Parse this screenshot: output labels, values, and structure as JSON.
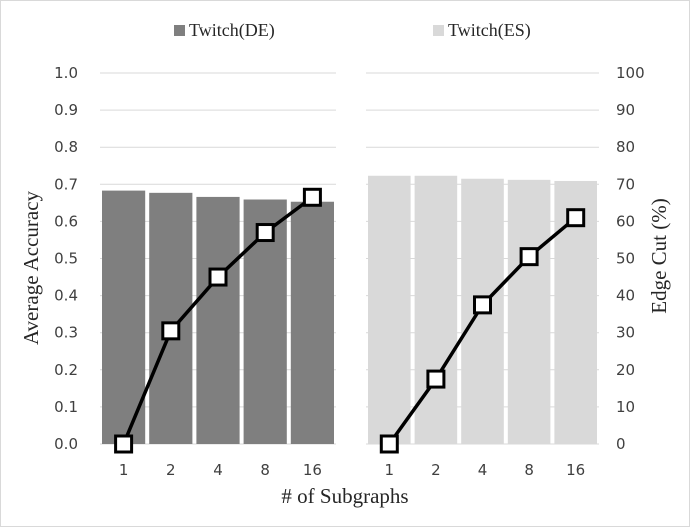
{
  "chart_data": {
    "type": "bar",
    "categories": [
      "1",
      "2",
      "4",
      "8",
      "16"
    ],
    "xlabel": "# of Subgraphs",
    "ylabel": "Average Accuracy",
    "y2label": "Edge Cut (%)",
    "ylim": [
      0,
      1.0
    ],
    "y2lim": [
      0,
      100
    ],
    "yticks": [
      "0.0",
      "0.1",
      "0.2",
      "0.3",
      "0.4",
      "0.5",
      "0.6",
      "0.7",
      "0.8",
      "0.9",
      "1.0"
    ],
    "y2ticks": [
      "0",
      "10",
      "20",
      "30",
      "40",
      "50",
      "60",
      "70",
      "80",
      "90",
      "100"
    ],
    "grid": true,
    "legend_position": "top",
    "panels": [
      {
        "series_name": "Twitch(DE)",
        "bar_color": "#7f7f7f",
        "accuracy": [
          0.683,
          0.677,
          0.666,
          0.659,
          0.653
        ],
        "edge_cut": [
          0,
          30.5,
          45,
          57,
          66.5
        ]
      },
      {
        "series_name": "Twitch(ES)",
        "bar_color": "#d9d9d9",
        "accuracy": [
          0.723,
          0.723,
          0.715,
          0.712,
          0.709
        ],
        "edge_cut": [
          0,
          17.5,
          37.5,
          50.5,
          61
        ]
      }
    ],
    "line_color": "#000000"
  }
}
